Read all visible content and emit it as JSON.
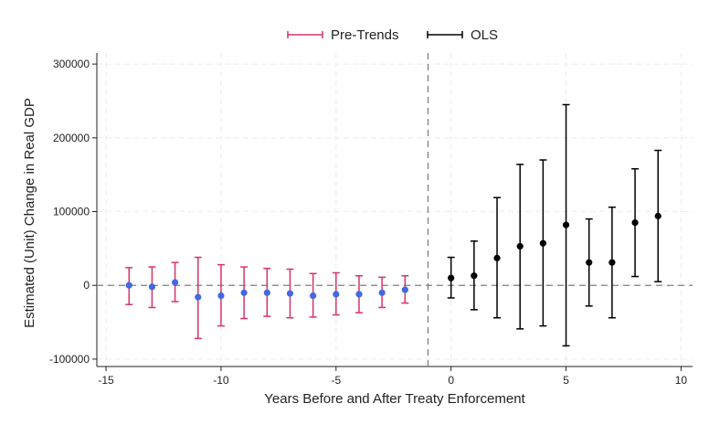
{
  "chart_data": {
    "type": "scatter",
    "title": "",
    "xlabel": "Years Before and After Treaty Enforcement",
    "ylabel": "Estimated (Unit) Change in Real GDP",
    "xlim": [
      -15.4,
      10.5
    ],
    "ylim": [
      -110000,
      315000
    ],
    "xticks": [
      -15,
      -10,
      -5,
      0,
      5,
      10
    ],
    "xtick_labels": [
      "-15",
      "-10",
      "-5",
      "0",
      "5",
      "10"
    ],
    "yticks": [
      300000,
      200000,
      100000,
      0,
      -100000
    ],
    "ytick_labels": [
      "300000",
      "200000",
      "100000",
      "0",
      "-100000"
    ],
    "grid": true,
    "legend_position": "top-center",
    "reference_lines": {
      "horizontal_y": 0,
      "vertical_x": -1
    },
    "series": [
      {
        "name": "Pre-Trends",
        "ci_color": "#d6336c",
        "point_color": "#4169e1",
        "x": [
          -14,
          -13,
          -12,
          -11,
          -10,
          -9,
          -8,
          -7,
          -6,
          -5,
          -4,
          -3,
          -2
        ],
        "y": [
          0,
          -2000,
          4000,
          -16000,
          -14000,
          -10000,
          -10000,
          -11000,
          -14000,
          -12000,
          -12000,
          -10000,
          -6000
        ],
        "lower": [
          -26000,
          -30000,
          -22000,
          -72000,
          -55000,
          -45000,
          -42000,
          -44000,
          -43000,
          -40000,
          -37000,
          -30000,
          -24000
        ],
        "upper": [
          24000,
          25000,
          31000,
          38000,
          28000,
          25000,
          23000,
          22000,
          16000,
          17000,
          13000,
          11000,
          13000
        ]
      },
      {
        "name": "OLS",
        "ci_color": "#000000",
        "point_color": "#000000",
        "x": [
          0,
          1,
          2,
          3,
          4,
          5,
          6,
          7,
          8,
          9
        ],
        "y": [
          10000,
          13000,
          37000,
          53000,
          57000,
          82000,
          31000,
          31000,
          85000,
          94000
        ],
        "lower": [
          -17000,
          -33000,
          -44000,
          -59000,
          -55000,
          -82000,
          -28000,
          -44000,
          12000,
          5000
        ],
        "upper": [
          38000,
          60000,
          119000,
          164000,
          170000,
          245000,
          90000,
          106000,
          158000,
          183000
        ]
      }
    ]
  }
}
